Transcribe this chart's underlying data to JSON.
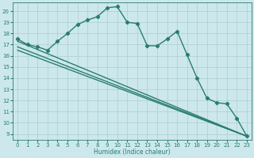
{
  "line1_x": [
    0,
    1,
    2,
    3,
    4,
    5,
    6,
    7,
    8,
    9,
    10,
    11,
    12,
    13,
    14,
    15,
    16,
    17,
    18,
    19,
    20,
    21,
    22,
    23
  ],
  "line1_y": [
    17.5,
    17.0,
    16.8,
    16.5,
    17.3,
    18.0,
    18.8,
    19.2,
    19.5,
    20.3,
    20.4,
    19.0,
    18.9,
    16.9,
    16.9,
    17.5,
    18.2,
    16.1,
    14.0,
    12.2,
    11.8,
    11.7,
    10.4,
    8.8
  ],
  "line2_x": [
    0,
    23
  ],
  "line2_y": [
    17.3,
    8.8
  ],
  "line3_x": [
    0,
    23
  ],
  "line3_y": [
    16.8,
    8.8
  ],
  "line4_x": [
    0,
    23
  ],
  "line4_y": [
    16.5,
    8.8
  ],
  "color": "#2a7d6e",
  "bg_color": "#cce8ec",
  "grid_color": "#aacdd4",
  "xlabel": "Humidex (Indice chaleur)",
  "xlim": [
    -0.5,
    23.5
  ],
  "ylim": [
    8.5,
    20.8
  ],
  "yticks": [
    9,
    10,
    11,
    12,
    13,
    14,
    15,
    16,
    17,
    18,
    19,
    20
  ],
  "xticks": [
    0,
    1,
    2,
    3,
    4,
    5,
    6,
    7,
    8,
    9,
    10,
    11,
    12,
    13,
    14,
    15,
    16,
    17,
    18,
    19,
    20,
    21,
    22,
    23
  ],
  "marker": "D",
  "markersize": 2.2,
  "linewidth": 1.0,
  "tick_labelsize": 5.0,
  "xlabel_fontsize": 5.5
}
